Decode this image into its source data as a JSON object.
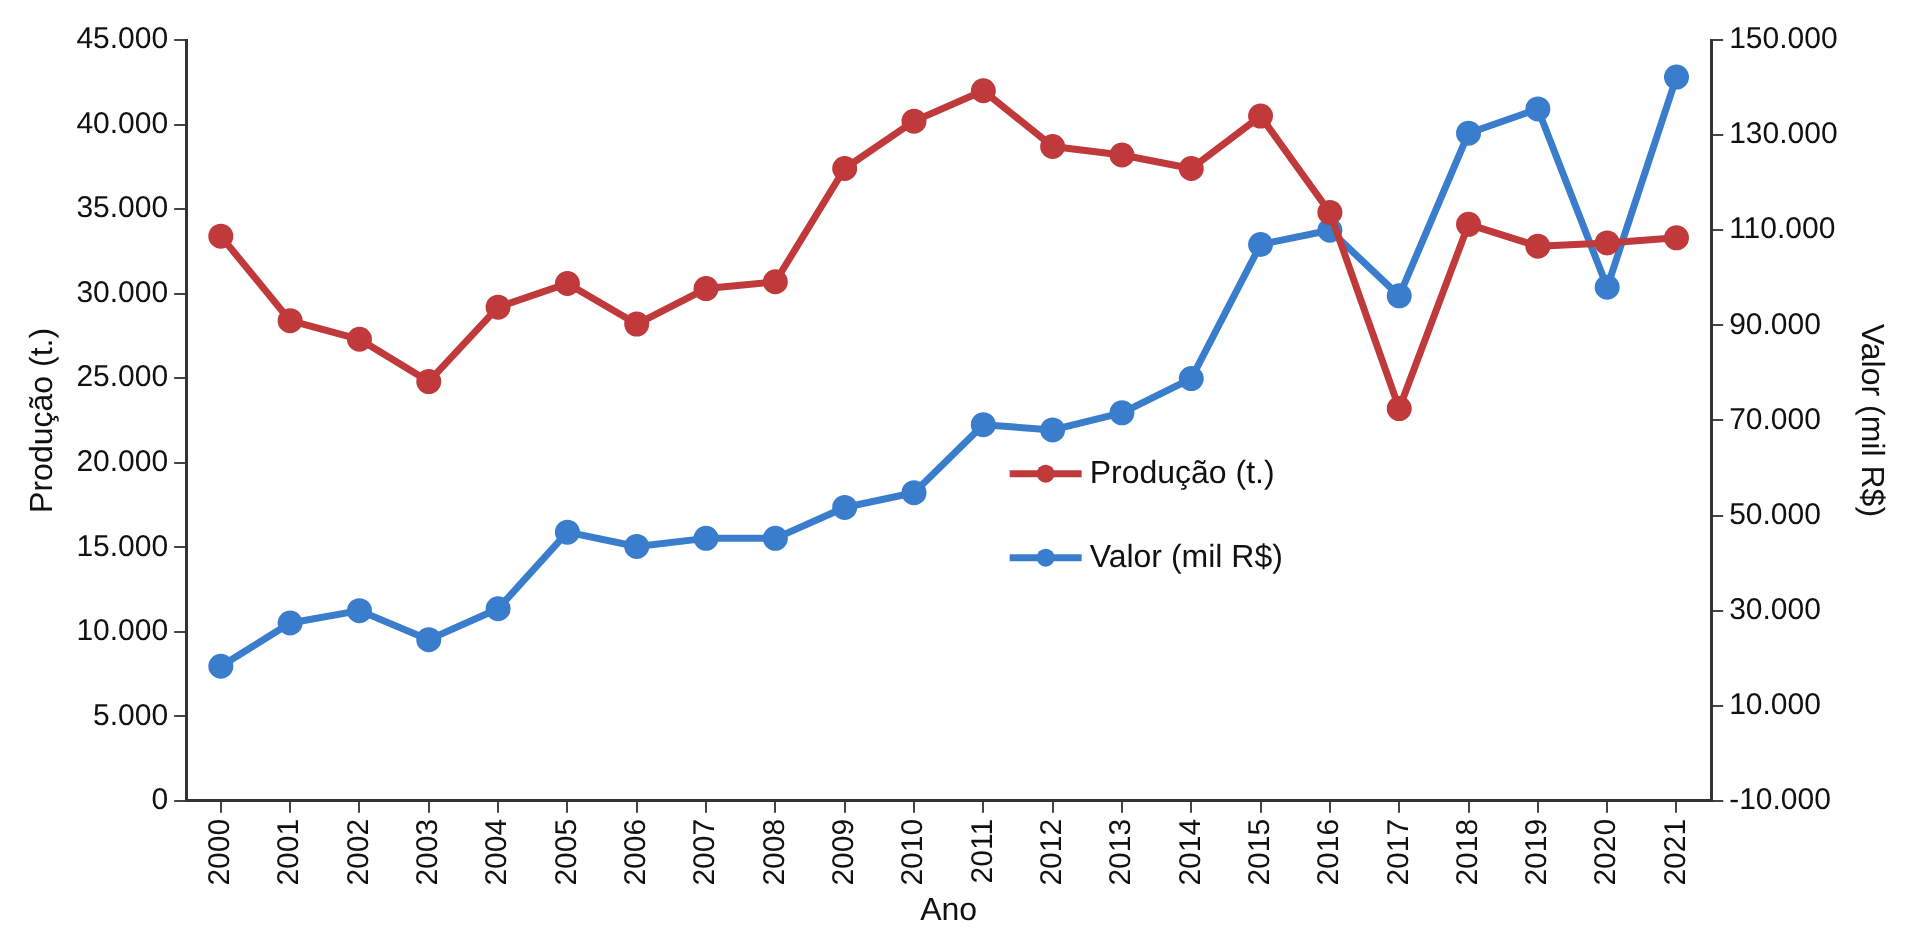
{
  "chart_data": {
    "type": "line",
    "xlabel": "Ano",
    "ylabel": "Produção (t.)",
    "y2label": "Valor (mil R$)",
    "categories": [
      "2000",
      "2001",
      "2002",
      "2003",
      "2004",
      "2005",
      "2006",
      "2007",
      "2008",
      "2009",
      "2010",
      "2011",
      "2012",
      "2013",
      "2014",
      "2015",
      "2016",
      "2017",
      "2018",
      "2019",
      "2020",
      "2021"
    ],
    "series": [
      {
        "name": "Produção (t.)",
        "color": "#c0393b",
        "values": [
          33400,
          28400,
          27300,
          24800,
          29200,
          30600,
          28200,
          30300,
          30700,
          37400,
          40200,
          42000,
          38700,
          38200,
          37400,
          40500,
          34800,
          23200,
          34100,
          32800,
          33000,
          33300
        ]
      },
      {
        "name": "Valor (mil R$)",
        "color": "#3a7dcc",
        "axis": "y2",
        "values": [
          18300,
          27400,
          30000,
          23900,
          30400,
          46500,
          43500,
          45200,
          45200,
          51700,
          54800,
          69100,
          68000,
          71600,
          78800,
          107000,
          110000,
          96200,
          130400,
          135500,
          98000,
          142200
        ]
      }
    ],
    "ylim": [
      0,
      45000
    ],
    "yticks": [
      {
        "value": 0,
        "label": "0"
      },
      {
        "value": 5000,
        "label": "5.000"
      },
      {
        "value": 10000,
        "label": "10.000"
      },
      {
        "value": 15000,
        "label": "15.000"
      },
      {
        "value": 20000,
        "label": "20.000"
      },
      {
        "value": 25000,
        "label": "25.000"
      },
      {
        "value": 30000,
        "label": "30.000"
      },
      {
        "value": 35000,
        "label": "35.000"
      },
      {
        "value": 40000,
        "label": "40.000"
      },
      {
        "value": 45000,
        "label": "45.000"
      }
    ],
    "y2lim": [
      -10000,
      150000
    ],
    "y2ticks": [
      {
        "value": -10000,
        "label": "-10.000"
      },
      {
        "value": 10000,
        "label": "10.000"
      },
      {
        "value": 30000,
        "label": "30.000"
      },
      {
        "value": 50000,
        "label": "50.000"
      },
      {
        "value": 70000,
        "label": "70.000"
      },
      {
        "value": 90000,
        "label": "90.000"
      },
      {
        "value": 110000,
        "label": "110.000"
      },
      {
        "value": 130000,
        "label": "130.000"
      },
      {
        "value": 150000,
        "label": "150.000"
      }
    ],
    "grid": false,
    "legend": "center",
    "marker": "circle",
    "line_style": "solid"
  }
}
